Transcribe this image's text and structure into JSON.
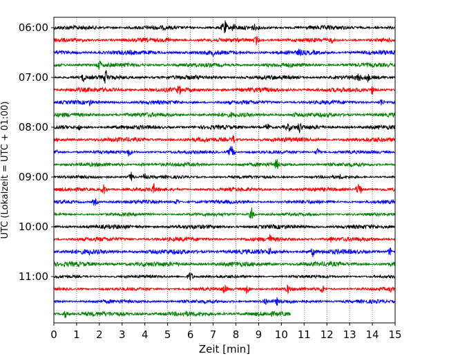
{
  "chart_data": {
    "type": "line",
    "title": "",
    "xlabel": "Zeit  [min]",
    "ylabel": "UTC (Lokalzeit = UTC + 01:00)",
    "xlim": [
      0,
      15
    ],
    "x_ticks": [
      "0",
      "1",
      "2",
      "3",
      "4",
      "5",
      "6",
      "7",
      "8",
      "9",
      "10",
      "11",
      "12",
      "13",
      "14",
      "15"
    ],
    "y_ticks": [
      "06:00",
      "07:00",
      "08:00",
      "09:00",
      "10:00",
      "11:00"
    ],
    "grid": "vertical dotted at each minute",
    "row_minutes": 15,
    "row_count": 24,
    "start_time": "06:00",
    "colors": [
      "#000000",
      "#ff0000",
      "#0000ff",
      "#008000"
    ],
    "last_row_end_min": 10.4,
    "events": [
      [
        0,
        7.5,
        14
      ],
      [
        0,
        7.9,
        9
      ],
      [
        0,
        8.8,
        7
      ],
      [
        1,
        5.0,
        7
      ],
      [
        1,
        8.9,
        8
      ],
      [
        1,
        12.2,
        6
      ],
      [
        2,
        7.0,
        6
      ],
      [
        2,
        10.8,
        8
      ],
      [
        3,
        2.0,
        9
      ],
      [
        3,
        10.0,
        4
      ],
      [
        4,
        1.3,
        8
      ],
      [
        4,
        2.3,
        14
      ],
      [
        4,
        13.4,
        9
      ],
      [
        4,
        13.8,
        8
      ],
      [
        5,
        5.5,
        10
      ],
      [
        5,
        14.0,
        8
      ],
      [
        5,
        1.1,
        5
      ],
      [
        6,
        1.6,
        7
      ],
      [
        6,
        14.4,
        7
      ],
      [
        7,
        7.8,
        5
      ],
      [
        7,
        10.6,
        5
      ],
      [
        8,
        1.1,
        6
      ],
      [
        8,
        9.4,
        8
      ],
      [
        8,
        10.3,
        9
      ],
      [
        8,
        10.8,
        10
      ],
      [
        9,
        7.9,
        8
      ],
      [
        10,
        3.3,
        8
      ],
      [
        10,
        7.8,
        12
      ],
      [
        10,
        11.6,
        7
      ],
      [
        10,
        0.1,
        6
      ],
      [
        11,
        9.8,
        10
      ],
      [
        11,
        3.9,
        4
      ],
      [
        12,
        3.4,
        8
      ],
      [
        12,
        4.0,
        7
      ],
      [
        12,
        12.6,
        5
      ],
      [
        13,
        2.2,
        9
      ],
      [
        13,
        4.4,
        9
      ],
      [
        13,
        13.4,
        12
      ],
      [
        14,
        1.8,
        7
      ],
      [
        14,
        5.4,
        6
      ],
      [
        15,
        8.7,
        10
      ],
      [
        16,
        13.9,
        4
      ],
      [
        17,
        9.5,
        9
      ],
      [
        17,
        12.2,
        6
      ],
      [
        18,
        1.6,
        7
      ],
      [
        18,
        9.5,
        8
      ],
      [
        18,
        11.4,
        9
      ],
      [
        18,
        14.8,
        8
      ],
      [
        19,
        5.5,
        4
      ],
      [
        20,
        6.0,
        9
      ],
      [
        21,
        7.5,
        9
      ],
      [
        21,
        8.5,
        9
      ],
      [
        21,
        10.3,
        8
      ],
      [
        21,
        11.8,
        8
      ],
      [
        21,
        14.8,
        6
      ],
      [
        22,
        9.3,
        8
      ],
      [
        22,
        9.8,
        7
      ],
      [
        23,
        0.5,
        7
      ],
      [
        23,
        6.0,
        4
      ]
    ]
  }
}
